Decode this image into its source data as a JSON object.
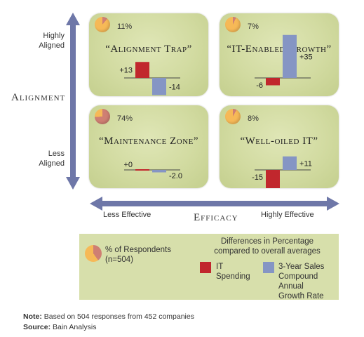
{
  "axes": {
    "y_title": "Alignment",
    "y_top_label": [
      "Highly",
      "Aligned"
    ],
    "y_bottom_label": [
      "Less",
      "Aligned"
    ],
    "x_title": "Efficacy",
    "x_left_label": "Less Effective",
    "x_right_label": "Highly Effective"
  },
  "colors": {
    "it_spending": "#c1272d",
    "sales_growth": "#8595c4",
    "quadrant_fill": "#d3dca3",
    "axis_arrow": "#6e77a8"
  },
  "chart_data": {
    "type": "bar",
    "series_names": [
      "IT Spending",
      "3-Year Sales Compound Annual Growth Rate"
    ],
    "quadrants": [
      {
        "name": "“Alignment Trap”",
        "respondents_pct": "11%",
        "respondents_frac": 0.11,
        "it_spending": 13,
        "sales_growth": -14,
        "it_label": "+13",
        "sales_label": "-14"
      },
      {
        "name": "“IT-Enabled Growth”",
        "respondents_pct": "7%",
        "respondents_frac": 0.07,
        "it_spending": -6,
        "sales_growth": 35,
        "it_label": "-6",
        "sales_label": "+35"
      },
      {
        "name": "“Maintenance Zone”",
        "respondents_pct": "74%",
        "respondents_frac": 0.74,
        "it_spending": 0,
        "sales_growth": -2.0,
        "it_label": "+0",
        "sales_label": "-2.0"
      },
      {
        "name": "“Well-oiled IT”",
        "respondents_pct": "8%",
        "respondents_frac": 0.08,
        "it_spending": -15,
        "sales_growth": 11,
        "it_label": "-15",
        "sales_label": "+11"
      }
    ]
  },
  "legend": {
    "title": "Differences in Percentage compared to overall averages",
    "title_line1": "Differences in Percentage",
    "title_line2": "compared to overall averages",
    "respondents_line1": "% of Respondents",
    "respondents_line2": "(n=504)",
    "it_line1": "IT",
    "it_line2": "Spending",
    "sales_line1": "3-Year Sales",
    "sales_line2": "Compound",
    "sales_line3": "Annual",
    "sales_line4": "Growth Rate"
  },
  "notes": {
    "note_label": "Note:",
    "note_text": " Based on 504 responses from 452 companies",
    "source_label": "Source:",
    "source_text": " Bain Analysis"
  }
}
